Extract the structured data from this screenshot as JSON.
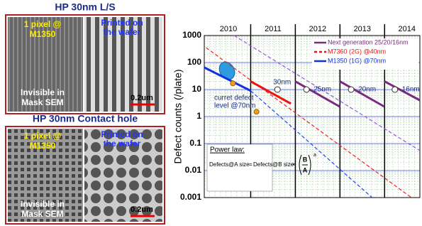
{
  "panels": [
    {
      "title": "HP 30nm L/S",
      "left_label": [
        "1 pixel @",
        "M1350"
      ],
      "right_label": [
        "Printed on",
        "the wafer"
      ],
      "bottom_label": [
        "Invisible in",
        "Mask SEM"
      ],
      "scale": "0.2um"
    },
    {
      "title": "HP 30nm Contact hole",
      "left_label": [
        "1 pixel @",
        "M1350"
      ],
      "right_label": [
        "Printed on",
        "the wafer"
      ],
      "bottom_label": [
        "Invisible in",
        "Mask SEM"
      ],
      "scale": "0.2um"
    }
  ],
  "chart_data": {
    "type": "line",
    "y_label": "Defect counts (/plate)",
    "log_y": true,
    "grid": true,
    "xlim": [
      2009.46,
      2014.29
    ],
    "xticks": [
      2010,
      2011,
      2012,
      2013,
      2014
    ],
    "year_lines": [
      2010.5,
      2011.5,
      2012.5,
      2013.5
    ],
    "ylim": [
      0.001,
      1000
    ],
    "yticks": [
      0.001,
      0.01,
      0.1,
      1,
      10,
      100,
      1000
    ],
    "series": [
      {
        "name": "Next generation 25/20/16nm",
        "color": "#7b2a7f",
        "x": [
          2011.5,
          2012.5,
          2012.5,
          2012.5,
          2013.5,
          2013.5,
          2013.5,
          2014.29
        ],
        "values": [
          20,
          2.3,
          null,
          20,
          2.3,
          null,
          20,
          4
        ],
        "projection": {
          "color": "#9955dd",
          "x": [
            2010.13,
            2014.29
          ],
          "values": [
            1000,
            0.055
          ]
        }
      },
      {
        "name": "M7360 (2G) @40nm",
        "color": "#ee1111",
        "x": [
          2010.5,
          2011.4
        ],
        "values": [
          20,
          3
        ],
        "projection": {
          "color": "#ee2222",
          "x": [
            2009.5,
            2014.1
          ],
          "values": [
            357,
            0.001
          ]
        }
      },
      {
        "name": "M1350 (1G) @70nm",
        "color": "#1133dd",
        "x": [
          2009.46,
          2010.5
        ],
        "values": [
          66,
          9
        ],
        "projection": {
          "color": "#2244ee",
          "x": [
            2010.5,
            2013.22
          ],
          "values": [
            9,
            0.001
          ]
        }
      }
    ],
    "nodes": {
      "x": [
        2011.1,
        2011.75,
        2012.75,
        2013.73
      ],
      "values": [
        10,
        10,
        10,
        10
      ],
      "labels": [
        "30nm",
        "25nm",
        "20nm",
        "16nm"
      ]
    },
    "measured": {
      "color": "#f0a020",
      "x": [
        2010.1,
        2010.63
      ],
      "values": [
        17,
        1.5
      ]
    },
    "current_level": {
      "x": 2009.97,
      "value": 50,
      "label": [
        "curret defect",
        "level @70nm"
      ]
    },
    "power_law": {
      "title": "Power law:",
      "formula": [
        "Defects@A size",
        "=",
        "Defects@B size",
        "×",
        "B",
        "A",
        "a"
      ]
    }
  }
}
